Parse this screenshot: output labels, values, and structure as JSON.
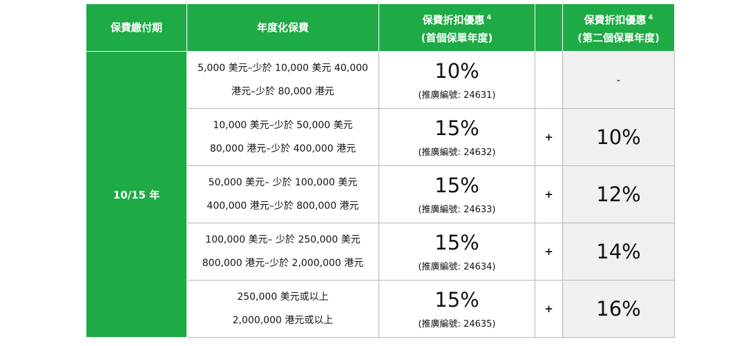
{
  "table": {
    "headers": {
      "period": "保費繳付期",
      "premium": "年度化保費",
      "first": {
        "line1": "保費折扣優惠",
        "sup": "4",
        "line2": "(首個保單年度)"
      },
      "second": {
        "line1": "保費折扣優惠",
        "sup": "4",
        "line2": "(第二個保單年度)"
      }
    },
    "period_value": "10/15 年",
    "rows": [
      {
        "range_line1": "5,000 美元–少於 10,000 美元 40,000",
        "range_line2": "港元–少於 80,000 港元",
        "first_pct": "10%",
        "promo_code": "(推廣編號: 24631)",
        "plus": "",
        "second_pct": "-"
      },
      {
        "range_line1": "10,000 美元–少於 50,000 美元",
        "range_line2": "80,000 港元–少於 400,000 港元",
        "first_pct": "15%",
        "promo_code": "(推廣編號: 24632)",
        "plus": "+",
        "second_pct": "10%"
      },
      {
        "range_line1": "50,000 美元– 少於 100,000 美元",
        "range_line2": "400,000 港元–少於 800,000 港元",
        "first_pct": "15%",
        "promo_code": "(推廣編號: 24633)",
        "plus": "+",
        "second_pct": "12%"
      },
      {
        "range_line1": "100,000 美元– 少於 250,000 美元",
        "range_line2": "800,000 港元–少於 2,000,000 港元",
        "first_pct": "15%",
        "promo_code": "(推廣編號: 24634)",
        "plus": "+",
        "second_pct": "14%"
      },
      {
        "range_line1": "250,000 美元或以上",
        "range_line2": "2,000,000 港元或以上",
        "first_pct": "15%",
        "promo_code": "(推廣編號: 24635)",
        "plus": "+",
        "second_pct": "16%"
      }
    ]
  },
  "colors": {
    "header_green": "#1eaa45",
    "second_col_bg": "#f0f0f0"
  }
}
